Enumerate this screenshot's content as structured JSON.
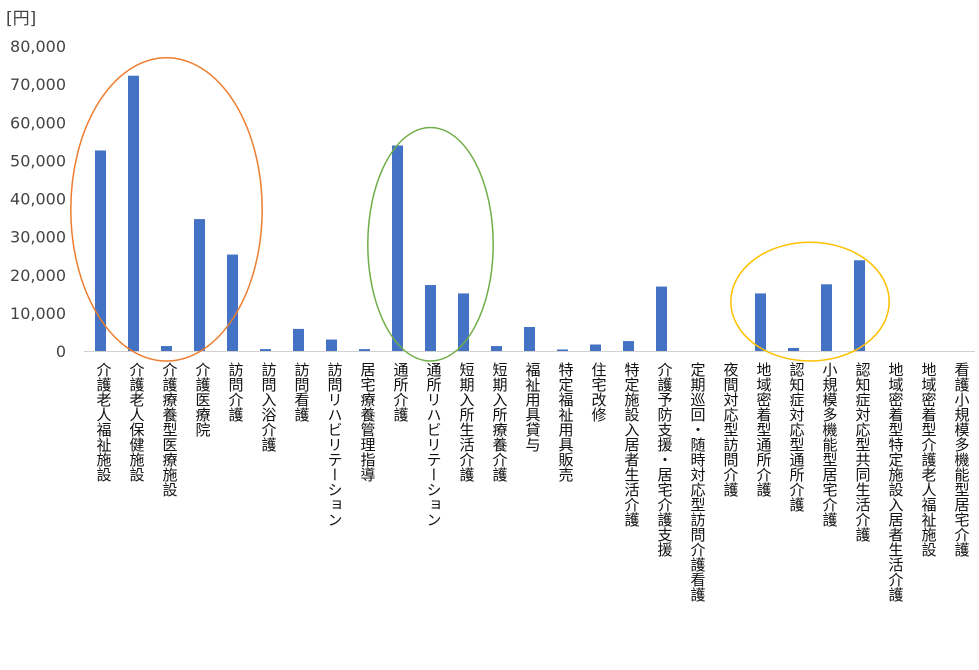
{
  "chart_data": {
    "type": "bar",
    "title": "",
    "xlabel": "",
    "ylabel": "",
    "unit_label": "[円]",
    "ylim": [
      0,
      80000
    ],
    "yticks": [
      0,
      10000,
      20000,
      30000,
      40000,
      50000,
      60000,
      70000,
      80000
    ],
    "ytick_labels": [
      "0",
      "10,000",
      "20,000",
      "30,000",
      "40,000",
      "50,000",
      "60,000",
      "70,000",
      "80,000"
    ],
    "grid": false,
    "legend": "none",
    "bar_color": "#4472C4",
    "categories": [
      "介護老人福祉施設",
      "介護老人保健施設",
      "介護療養型医療施設",
      "介護医療院",
      "訪問介護",
      "訪問入浴介護",
      "訪問看護",
      "訪問リハビリテーション",
      "居宅療養管理指導",
      "通所介護",
      "通所リハビリテーション",
      "短期入所生活介護",
      "短期入所療養介護",
      "福祉用具貸与",
      "特定福祉用具販売",
      "住宅改修",
      "特定施設入居者生活介護",
      "介護予防支援・居宅介護支援",
      "定期巡回・随時対応型訪問介護看護",
      "夜間対応型訪問介護",
      "地域密着型通所介護",
      "認知症対応型通所介護",
      "小規模多機能型居宅介護",
      "認知症対応型共同生活介護",
      "地域密着型特定施設入居者生活介護",
      "地域密着型介護老人福祉施設",
      "看護小規模多機能型居宅介護"
    ],
    "values": [
      52600,
      72200,
      1300,
      34600,
      25300,
      500,
      5800,
      3000,
      500,
      53900,
      17300,
      15100,
      1300,
      6300,
      400,
      1700,
      2600,
      16900,
      0,
      0,
      15100,
      800,
      17500,
      23800,
      0,
      0,
      0
    ],
    "highlight_groups": [
      {
        "from": 0,
        "to": 4,
        "color": "#ED7D31"
      },
      {
        "from": 9,
        "to": 11,
        "color": "#70AD47"
      },
      {
        "from": 20,
        "to": 23,
        "color": "#FFC000"
      }
    ]
  }
}
